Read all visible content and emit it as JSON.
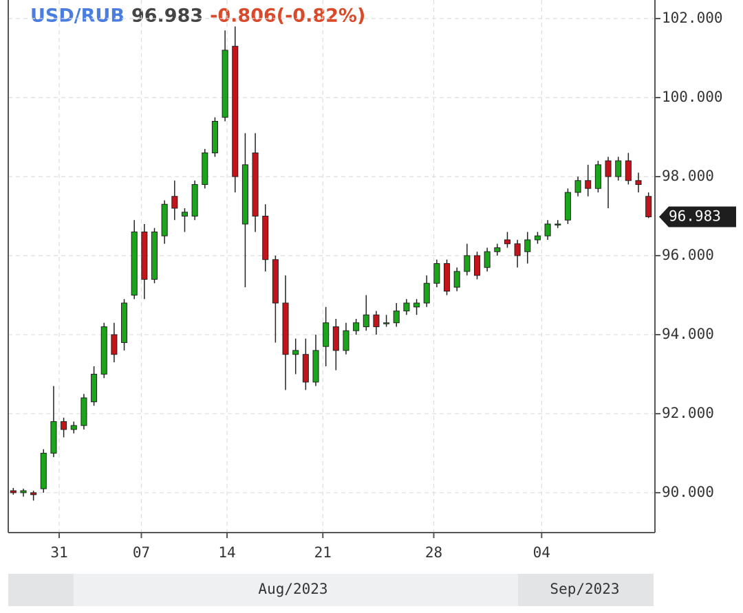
{
  "chart_data": {
    "type": "candlestick",
    "symbol": "USD/RUB",
    "symbol_color": "#4a7de0",
    "last_price": 96.983,
    "last_color": "#444",
    "change": "-0.806(-0.82%)",
    "change_color": "#d84a2a",
    "up_color": "#1aa51a",
    "down_color": "#c4141b",
    "categories": [
      null,
      null,
      null,
      null,
      null,
      null,
      null,
      null,
      null,
      null,
      null,
      null,
      null,
      null,
      null,
      null,
      null,
      null,
      null,
      null,
      null,
      null,
      null,
      null,
      null,
      null,
      null,
      null,
      null,
      null,
      null,
      null,
      null,
      null,
      null,
      null,
      null,
      null,
      null,
      null,
      null,
      null,
      null,
      null,
      null,
      null,
      null,
      null,
      null,
      null,
      null,
      null,
      null,
      null,
      null,
      null,
      null,
      null,
      null,
      null,
      null,
      null,
      null,
      null
    ],
    "open": [
      90.05,
      90.0,
      90.0,
      90.1,
      91.0,
      91.8,
      91.6,
      91.7,
      92.3,
      93.0,
      94.0,
      93.8,
      95.0,
      96.6,
      95.4,
      96.5,
      97.5,
      97.0,
      97.0,
      97.8,
      98.6,
      99.5,
      101.3,
      96.8,
      98.6,
      97.0,
      95.9,
      94.8,
      93.5,
      93.5,
      92.8,
      93.7,
      94.2,
      93.6,
      94.1,
      94.2,
      94.5,
      94.3,
      94.3,
      94.6,
      94.7,
      94.8,
      95.3,
      95.8,
      95.2,
      95.6,
      96.0,
      95.7,
      96.1,
      96.4,
      96.3,
      96.1,
      96.4,
      96.5,
      96.8,
      96.9,
      97.6,
      97.9,
      97.7,
      98.4,
      98.0,
      98.4,
      97.9,
      97.5
    ],
    "high": [
      90.12,
      90.1,
      90.05,
      91.1,
      92.7,
      91.9,
      91.8,
      92.5,
      93.2,
      94.3,
      94.3,
      94.9,
      96.9,
      96.8,
      96.7,
      97.4,
      97.9,
      97.2,
      97.9,
      98.7,
      99.5,
      101.7,
      101.8,
      99.1,
      99.1,
      97.3,
      96.0,
      95.5,
      93.9,
      93.9,
      94.0,
      94.7,
      94.4,
      94.3,
      94.4,
      95.0,
      94.6,
      94.5,
      94.8,
      94.9,
      94.9,
      95.5,
      95.9,
      95.9,
      95.7,
      96.3,
      96.1,
      96.2,
      96.3,
      96.6,
      96.4,
      96.6,
      96.6,
      96.9,
      96.9,
      97.7,
      98.0,
      98.3,
      98.4,
      98.5,
      98.5,
      98.6,
      98.1,
      97.6
    ],
    "low": [
      89.95,
      89.9,
      89.8,
      90.0,
      90.9,
      91.4,
      91.5,
      91.6,
      92.2,
      92.9,
      93.3,
      93.6,
      94.9,
      94.9,
      95.3,
      96.3,
      96.9,
      96.6,
      96.9,
      97.7,
      98.5,
      99.4,
      97.6,
      95.2,
      96.6,
      95.6,
      93.8,
      92.6,
      93.0,
      92.6,
      92.7,
      93.2,
      93.1,
      93.5,
      94.0,
      94.1,
      94.0,
      94.2,
      94.2,
      94.5,
      94.5,
      94.7,
      95.2,
      95.0,
      95.1,
      95.5,
      95.4,
      95.6,
      96.0,
      96.2,
      95.7,
      95.8,
      96.3,
      96.4,
      96.7,
      96.8,
      97.5,
      97.5,
      97.6,
      97.2,
      97.9,
      97.8,
      97.6,
      96.95
    ],
    "close": [
      90.0,
      90.05,
      89.95,
      91.0,
      91.8,
      91.6,
      91.7,
      92.4,
      93.0,
      94.2,
      93.5,
      94.8,
      96.6,
      95.4,
      96.6,
      97.3,
      97.2,
      97.1,
      97.8,
      98.6,
      99.4,
      101.2,
      98.0,
      98.3,
      97.0,
      95.9,
      94.8,
      93.5,
      93.6,
      92.8,
      93.6,
      94.3,
      93.6,
      94.1,
      94.3,
      94.5,
      94.2,
      94.3,
      94.6,
      94.8,
      94.8,
      95.3,
      95.8,
      95.1,
      95.6,
      96.0,
      95.5,
      96.1,
      96.2,
      96.3,
      96.0,
      96.4,
      96.5,
      96.8,
      96.8,
      97.6,
      97.9,
      97.7,
      98.3,
      98.0,
      98.4,
      97.9,
      97.8,
      96.983
    ],
    "xlim": [
      -0.5,
      63.5
    ],
    "xticks": [
      {
        "value": 4.55,
        "label": "31"
      },
      {
        "value": 12.7,
        "label": "07"
      },
      {
        "value": 21.2,
        "label": "14"
      },
      {
        "value": 30.7,
        "label": "21"
      },
      {
        "value": 41.7,
        "label": "28"
      },
      {
        "value": 52.4,
        "label": "04"
      }
    ],
    "ylim": [
      88.99,
      102.47
    ],
    "yticks": [
      {
        "value": 90,
        "label": "90.000"
      },
      {
        "value": 92,
        "label": "92.000"
      },
      {
        "value": 94,
        "label": "94.000"
      },
      {
        "value": 96,
        "label": "96.000"
      },
      {
        "value": 98,
        "label": "98.000"
      },
      {
        "value": 100,
        "label": "100.000"
      },
      {
        "value": 102,
        "label": "102.000"
      }
    ],
    "months": [
      "Aug/2023",
      "Sep/2023"
    ],
    "grid": true
  }
}
